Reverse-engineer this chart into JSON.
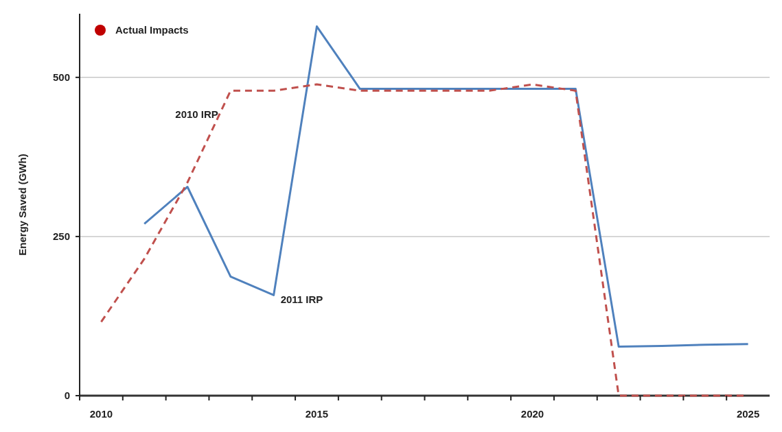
{
  "chart_data": {
    "type": "line",
    "ylabel": "Energy Saved (GWh)",
    "categories": [
      "2010",
      null,
      null,
      null,
      null,
      "2015",
      null,
      null,
      null,
      null,
      "2020",
      null,
      null,
      null,
      null,
      "2025"
    ],
    "ylim": [
      0,
      600
    ],
    "yticks": [
      0,
      250,
      500
    ],
    "grid": "y",
    "legend": "top left",
    "marker": "none",
    "series": [
      {
        "name": "2011 IRP",
        "color": "#4f81bd",
        "line_style": "solid",
        "values": [
          null,
          270,
          328,
          187,
          158,
          580,
          482,
          482,
          482,
          482,
          482,
          482,
          77,
          78,
          80,
          81
        ]
      },
      {
        "name": "2010 IRP",
        "color": "#c0504d",
        "line_style": "dashed",
        "values": [
          116,
          215,
          335,
          479,
          479,
          489,
          479,
          479,
          479,
          479,
          489,
          479,
          0,
          0,
          0,
          0
        ]
      },
      {
        "name": "Actual Impacts",
        "type": "scatter",
        "marker": "circle",
        "color": "#c00000",
        "values": [
          null,
          null,
          null,
          null,
          null,
          null,
          null,
          null,
          null,
          null,
          null,
          null,
          null,
          null,
          null,
          null
        ]
      }
    ]
  }
}
